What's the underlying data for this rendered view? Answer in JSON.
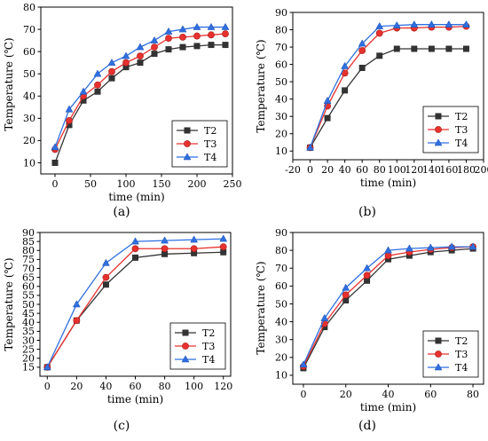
{
  "chart_data": [
    {
      "type": "line",
      "panel_label": "(a)",
      "xlabel": "time (min)",
      "ylabel": "Temperature (℃)",
      "xlim": [
        -20,
        250
      ],
      "ylim": [
        5,
        80
      ],
      "xticks": [
        0,
        50,
        100,
        150,
        200,
        250
      ],
      "yticks": [
        10,
        20,
        30,
        40,
        50,
        60,
        70,
        80
      ],
      "legend_position": "bottom-right",
      "series": [
        {
          "name": "T2",
          "color": "#333333",
          "marker": "square",
          "x": [
            0,
            20,
            40,
            60,
            80,
            100,
            120,
            140,
            160,
            180,
            200,
            220,
            240
          ],
          "y": [
            10,
            27,
            38,
            42,
            48,
            53,
            55,
            59,
            61,
            62,
            62.5,
            63,
            63
          ]
        },
        {
          "name": "T3",
          "color": "#e8312e",
          "marker": "circle",
          "x": [
            0,
            20,
            40,
            60,
            80,
            100,
            120,
            140,
            160,
            180,
            200,
            220,
            240
          ],
          "y": [
            16,
            29,
            40,
            45,
            51,
            55,
            58,
            62,
            66,
            66.5,
            67,
            67.5,
            68
          ]
        },
        {
          "name": "T4",
          "color": "#2f6fe0",
          "marker": "triangle",
          "x": [
            0,
            20,
            40,
            60,
            80,
            100,
            120,
            140,
            160,
            180,
            200,
            220,
            240
          ],
          "y": [
            17,
            34,
            42,
            50,
            55,
            58,
            62,
            65,
            69,
            70,
            71,
            71,
            71
          ]
        }
      ]
    },
    {
      "type": "line",
      "panel_label": "(b)",
      "xlabel": "time (min)",
      "ylabel": "Temperature (℃)",
      "xlim": [
        -20,
        200
      ],
      "ylim": [
        5,
        90
      ],
      "xticks": [
        -20,
        0,
        20,
        40,
        60,
        80,
        100,
        120,
        140,
        160,
        180,
        200
      ],
      "yticks": [
        10,
        20,
        30,
        40,
        50,
        60,
        70,
        80,
        90
      ],
      "legend_position": "bottom-right",
      "series": [
        {
          "name": "T2",
          "color": "#333333",
          "marker": "square",
          "x": [
            0,
            20,
            40,
            60,
            80,
            100,
            120,
            140,
            160,
            180
          ],
          "y": [
            12,
            29,
            45,
            58,
            65,
            69,
            69,
            69,
            69,
            69
          ]
        },
        {
          "name": "T3",
          "color": "#e8312e",
          "marker": "circle",
          "x": [
            0,
            20,
            40,
            60,
            80,
            100,
            120,
            140,
            160,
            180
          ],
          "y": [
            12,
            36,
            55,
            68,
            78,
            81,
            81,
            81.5,
            81.5,
            82
          ]
        },
        {
          "name": "T4",
          "color": "#2f6fe0",
          "marker": "triangle",
          "x": [
            0,
            20,
            40,
            60,
            80,
            100,
            120,
            140,
            160,
            180
          ],
          "y": [
            12,
            39,
            59,
            72,
            82,
            82.5,
            83,
            83,
            83,
            83
          ]
        }
      ]
    },
    {
      "type": "line",
      "panel_label": "(c)",
      "xlabel": "time (min)",
      "ylabel": "Temperature (℃)",
      "xlim": [
        -5,
        125
      ],
      "ylim": [
        10,
        90
      ],
      "xticks": [
        0,
        20,
        40,
        60,
        80,
        100,
        120
      ],
      "yticks": [
        15,
        20,
        25,
        30,
        35,
        40,
        45,
        50,
        55,
        60,
        65,
        70,
        75,
        80,
        85,
        90
      ],
      "legend_position": "bottom-right",
      "series": [
        {
          "name": "T2",
          "color": "#333333",
          "marker": "square",
          "x": [
            0,
            20,
            40,
            60,
            80,
            100,
            120
          ],
          "y": [
            15,
            41,
            61,
            76,
            78,
            78.5,
            79
          ]
        },
        {
          "name": "T3",
          "color": "#e8312e",
          "marker": "circle",
          "x": [
            0,
            20,
            40,
            60,
            80,
            100,
            120
          ],
          "y": [
            15,
            41,
            65,
            81,
            81,
            81,
            82
          ]
        },
        {
          "name": "T4",
          "color": "#2f6fe0",
          "marker": "triangle",
          "x": [
            0,
            20,
            40,
            60,
            80,
            100,
            120
          ],
          "y": [
            15,
            50,
            73,
            85,
            85.5,
            86,
            86.5
          ]
        }
      ]
    },
    {
      "type": "line",
      "panel_label": "(d)",
      "xlabel": "time (min)",
      "ylabel": "Temperature (℃)",
      "xlim": [
        -5,
        85
      ],
      "ylim": [
        5,
        90
      ],
      "xticks": [
        0,
        20,
        40,
        60,
        80
      ],
      "yticks": [
        10,
        20,
        30,
        40,
        50,
        60,
        70,
        80,
        90
      ],
      "legend_position": "bottom-right",
      "series": [
        {
          "name": "T2",
          "color": "#333333",
          "marker": "square",
          "x": [
            0,
            10,
            20,
            30,
            40,
            50,
            60,
            70,
            80
          ],
          "y": [
            14,
            37,
            52,
            63,
            75,
            77,
            79,
            80,
            81
          ]
        },
        {
          "name": "T3",
          "color": "#e8312e",
          "marker": "circle",
          "x": [
            0,
            10,
            20,
            30,
            40,
            50,
            60,
            70,
            80
          ],
          "y": [
            15,
            39,
            55,
            66,
            77,
            79,
            80.5,
            81.5,
            82
          ]
        },
        {
          "name": "T4",
          "color": "#2f6fe0",
          "marker": "triangle",
          "x": [
            0,
            10,
            20,
            30,
            40,
            50,
            60,
            70,
            80
          ],
          "y": [
            16,
            42,
            59,
            70,
            80,
            81,
            81.5,
            82,
            82
          ]
        }
      ]
    }
  ]
}
